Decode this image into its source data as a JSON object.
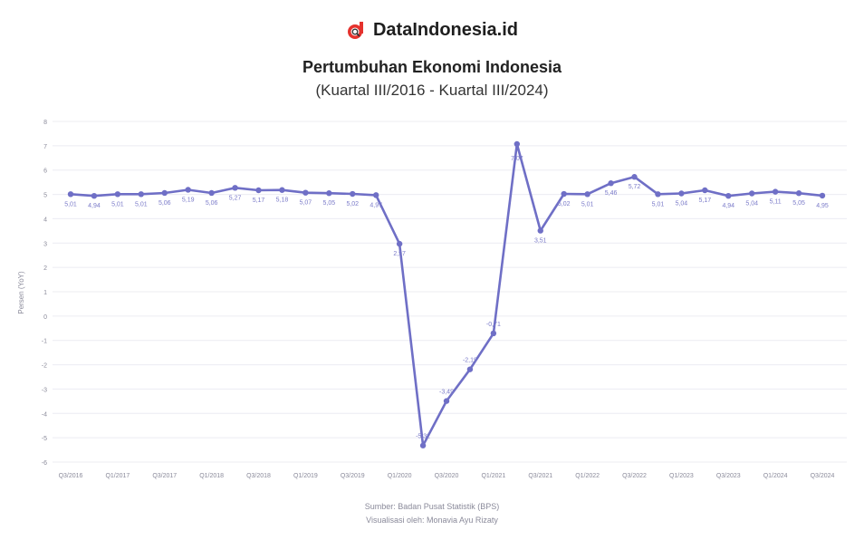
{
  "brand": {
    "name": "DataIndonesia.id",
    "logo_icon": "magnifier-d-logo",
    "logo_color": "#e5322d"
  },
  "header": {
    "title": "Pertumbuhan Ekonomi Indonesia",
    "subtitle": "(Kuartal III/2016 - Kuartal III/2024)"
  },
  "chart_data": {
    "type": "line",
    "ylabel": "Persen (YoY)",
    "ylim": [
      -6,
      8
    ],
    "yticks": [
      "-6",
      "-5",
      "-4",
      "-3",
      "-2",
      "-1",
      "0",
      "1",
      "2",
      "3",
      "4",
      "5",
      "6",
      "7",
      "8"
    ],
    "xtick_labels": [
      "Q3/2016",
      "Q1/2017",
      "Q3/2017",
      "Q1/2018",
      "Q3/2018",
      "Q1/2019",
      "Q3/2019",
      "Q1/2020",
      "Q3/2020",
      "Q1/2021",
      "Q3/2021",
      "Q1/2022",
      "Q3/2022",
      "Q1/2023",
      "Q3/2023",
      "Q1/2024",
      "Q3/2024"
    ],
    "line_color": "#6f6fc6",
    "grid": true,
    "series": [
      {
        "values": [
          5.01,
          4.94,
          5.01,
          5.01,
          5.06,
          5.19,
          5.06,
          5.27,
          5.17,
          5.18,
          5.07,
          5.05,
          5.02,
          4.97,
          2.97,
          -5.32,
          -3.49,
          -2.19,
          -0.71,
          7.07,
          3.51,
          5.02,
          5.01,
          5.46,
          5.72,
          5.01,
          5.04,
          5.17,
          4.94,
          5.04,
          5.11,
          5.05,
          4.95
        ],
        "labels": [
          "5,01",
          "4,94",
          "5,01",
          "5,01",
          "5,06",
          "5,19",
          "5,06",
          "5,27",
          "5,17",
          "5,18",
          "5,07",
          "5,05",
          "5,02",
          "4,97",
          "2,97",
          "-5,32",
          "-3,49",
          "-2,19",
          "-0,71",
          "7,07",
          "3,51",
          "5,02",
          "5,01",
          "5,46",
          "5,72",
          "5,01",
          "5,04",
          "5,17",
          "4,94",
          "5,04",
          "5,11",
          "5,05",
          "4,95"
        ]
      }
    ]
  },
  "footer": {
    "source": "Sumber: Badan Pusat Statistik (BPS)",
    "visualization": "Visualisasi oleh: Monavia Ayu Rizaty"
  }
}
